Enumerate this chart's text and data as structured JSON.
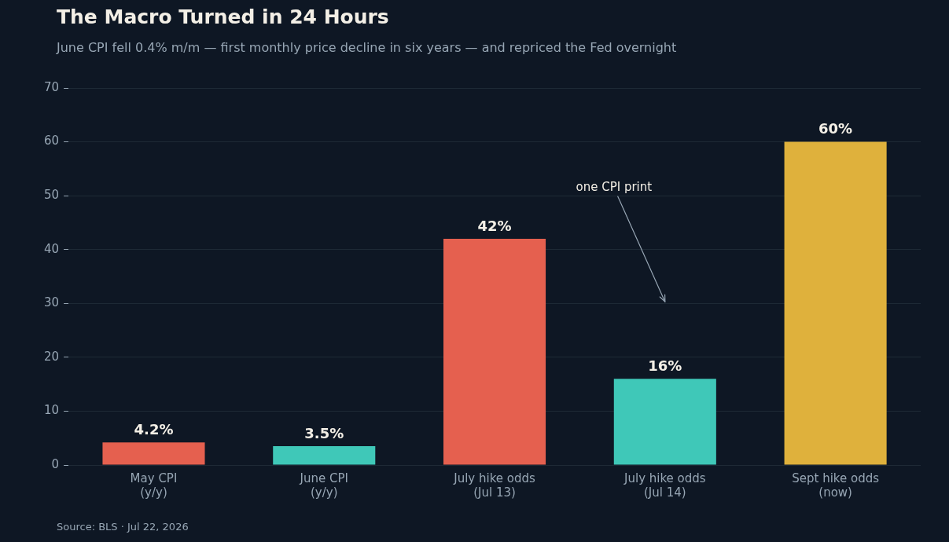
{
  "chart_data": {
    "type": "bar",
    "title": "The Macro Turned in 24 Hours",
    "subtitle": "June CPI fell 0.4% m/m — first monthly price decline in six years — and repriced the Fed overnight",
    "categories": [
      "May CPI\n(y/y)",
      "June CPI\n(y/y)",
      "July hike odds\n(Jul 13)",
      "July hike odds\n(Jul 14)",
      "Sept hike odds\n(now)"
    ],
    "values": [
      4.2,
      3.5,
      42,
      16,
      60
    ],
    "colors": [
      "#e5604f",
      "#3fc8b8",
      "#e5604f",
      "#3fc8b8",
      "#dfb13c"
    ],
    "value_labels": [
      "4.2%",
      "3.5%",
      "42%",
      "16%",
      "60%"
    ],
    "ylim": [
      0,
      70
    ],
    "yticks": [
      0,
      10,
      20,
      30,
      40,
      50,
      60,
      70
    ],
    "grid": "y",
    "legend": false,
    "annotations": [
      "one CPI print",
      "Source: BLS · Jul 22, 2026"
    ]
  }
}
